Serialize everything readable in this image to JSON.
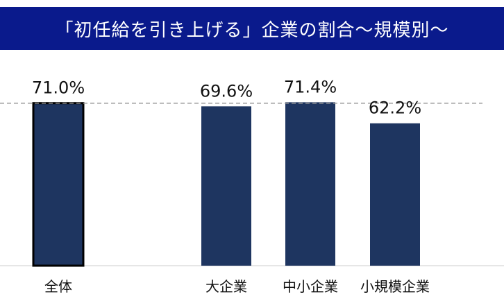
{
  "chart_data": {
    "type": "bar",
    "title": "「初任給を引き上げる」企業の割合～規模別～",
    "categories": [
      "全体",
      "大企業",
      "中小企業",
      "小規模企業"
    ],
    "values": [
      71.0,
      69.6,
      71.4,
      62.2
    ],
    "value_labels": [
      "71.0%",
      "69.6%",
      "71.4%",
      "62.2%"
    ],
    "reference_line_value": 71.0,
    "colors": {
      "title_background": "#0a1a8c",
      "title_text": "#ffffff",
      "bar_fill": "#1e3560",
      "highlight_outline": "#000000",
      "reference_line": "#999999",
      "axis_line": "#cccccc"
    }
  }
}
